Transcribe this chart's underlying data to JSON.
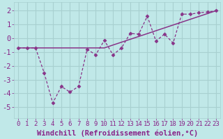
{
  "background_color": "#c0e8e8",
  "grid_color": "#a8d0d0",
  "line_color": "#883388",
  "marker_color": "#883388",
  "xlabel": "Windchill (Refroidissement éolien,°C)",
  "xlim": [
    -0.5,
    23.5
  ],
  "ylim": [
    -5.8,
    2.6
  ],
  "yticks": [
    -5,
    -4,
    -3,
    -2,
    -1,
    0,
    1,
    2
  ],
  "xticks": [
    0,
    1,
    2,
    3,
    4,
    5,
    6,
    7,
    8,
    9,
    10,
    11,
    12,
    13,
    14,
    15,
    16,
    17,
    18,
    19,
    20,
    21,
    22,
    23
  ],
  "xtick_labels": [
    "0",
    "1",
    "2",
    "3",
    "4",
    "5",
    "6",
    "7",
    "8",
    "9",
    "10",
    "11",
    "12",
    "13",
    "14",
    "15",
    "16",
    "17",
    "18",
    "19",
    "20",
    "21",
    "22",
    "23"
  ],
  "series1_x": [
    0,
    1,
    2,
    3,
    4,
    5,
    6,
    7,
    8,
    9,
    10,
    11,
    12,
    13,
    14,
    15,
    16,
    17,
    18,
    19,
    20,
    21,
    22,
    23
  ],
  "series1_y": [
    -0.7,
    -0.7,
    -0.7,
    -2.5,
    -4.7,
    -3.5,
    -3.9,
    -3.5,
    -0.8,
    -1.2,
    -0.15,
    -1.2,
    -0.7,
    0.35,
    0.3,
    1.6,
    -0.2,
    0.3,
    -0.35,
    1.75,
    1.75,
    1.85,
    1.9,
    2.0
  ],
  "series2_x": [
    0,
    10,
    23
  ],
  "series2_y": [
    -0.7,
    -0.7,
    2.0
  ],
  "font_color": "#882288",
  "tick_fontsize": 6.5,
  "label_fontsize": 7.5
}
